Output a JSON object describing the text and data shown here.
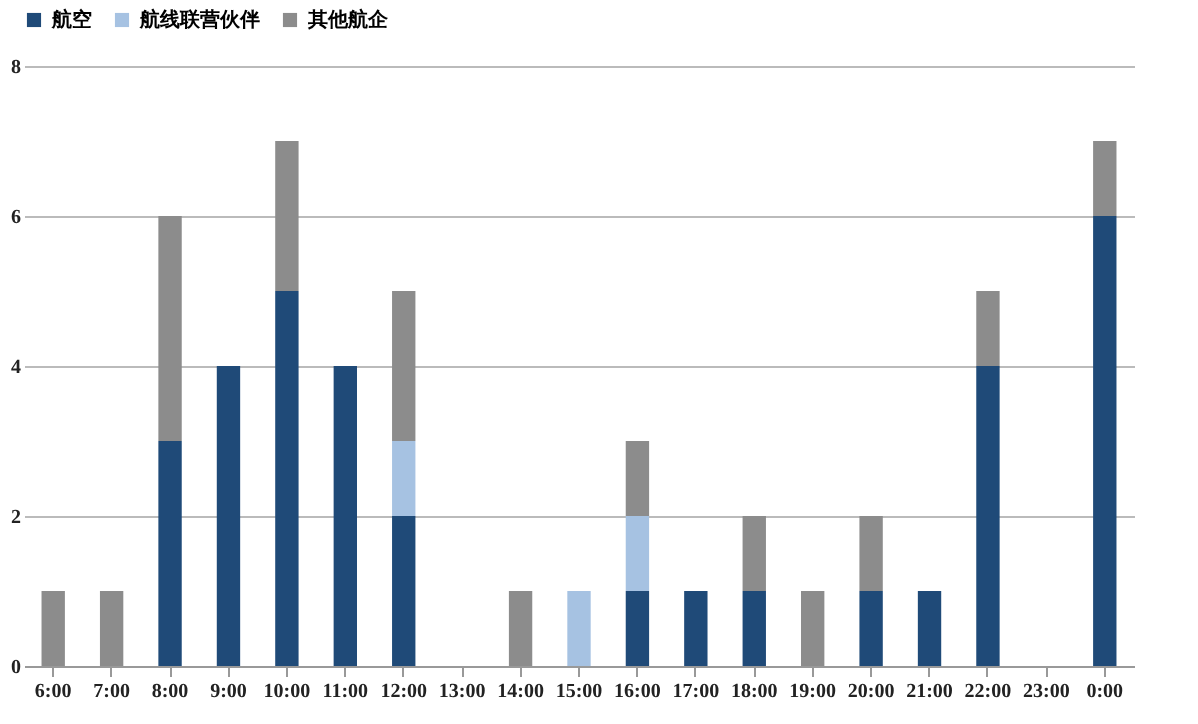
{
  "chart_data": {
    "type": "bar",
    "stacked": true,
    "categories": [
      "6:00",
      "7:00",
      "8:00",
      "9:00",
      "10:00",
      "11:00",
      "12:00",
      "13:00",
      "14:00",
      "15:00",
      "16:00",
      "17:00",
      "18:00",
      "19:00",
      "20:00",
      "21:00",
      "22:00",
      "23:00",
      "0:00"
    ],
    "series": [
      {
        "name": "航空",
        "color": "#1f4a78",
        "values": [
          0,
          0,
          3,
          4,
          5,
          4,
          2,
          0,
          0,
          0,
          1,
          1,
          1,
          0,
          1,
          1,
          4,
          0,
          6
        ]
      },
      {
        "name": "航线联营伙伴",
        "color": "#a6c2e2",
        "values": [
          0,
          0,
          0,
          0,
          0,
          0,
          1,
          0,
          0,
          1,
          1,
          0,
          0,
          0,
          0,
          0,
          0,
          0,
          0
        ]
      },
      {
        "name": "其他航企",
        "color": "#8c8c8c",
        "values": [
          1,
          1,
          3,
          0,
          2,
          0,
          2,
          0,
          1,
          0,
          1,
          0,
          1,
          1,
          1,
          0,
          1,
          0,
          1
        ]
      }
    ],
    "ylim": [
      0,
      8
    ],
    "yticks": [
      0,
      2,
      4,
      6,
      8
    ],
    "grid": "y",
    "legend": "top"
  }
}
